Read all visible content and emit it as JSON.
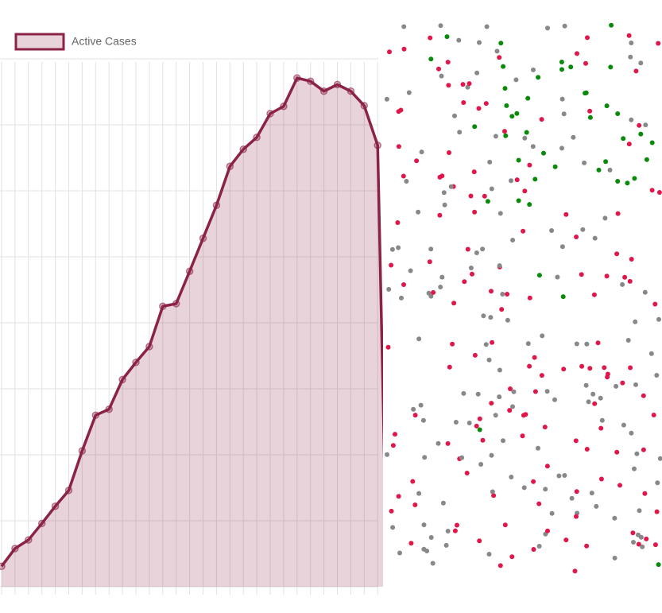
{
  "chart_data": {
    "type": "line",
    "series": [
      {
        "name": "Active Cases",
        "color": "#8b2346",
        "values": [
          0.31,
          0.58,
          0.71,
          0.96,
          1.22,
          1.46,
          2.06,
          2.6,
          2.69,
          3.14,
          3.4,
          3.64,
          4.25,
          4.29,
          4.78,
          5.28,
          5.78,
          6.37,
          6.63,
          6.81,
          7.17,
          7.28,
          7.71,
          7.66,
          7.51,
          7.61,
          7.51,
          7.29,
          6.69,
          0
        ]
      }
    ],
    "ylim": [
      0,
      8
    ],
    "yticks": [
      0,
      1,
      2,
      3,
      4,
      5,
      6,
      7,
      8
    ],
    "grid": true
  }
}
